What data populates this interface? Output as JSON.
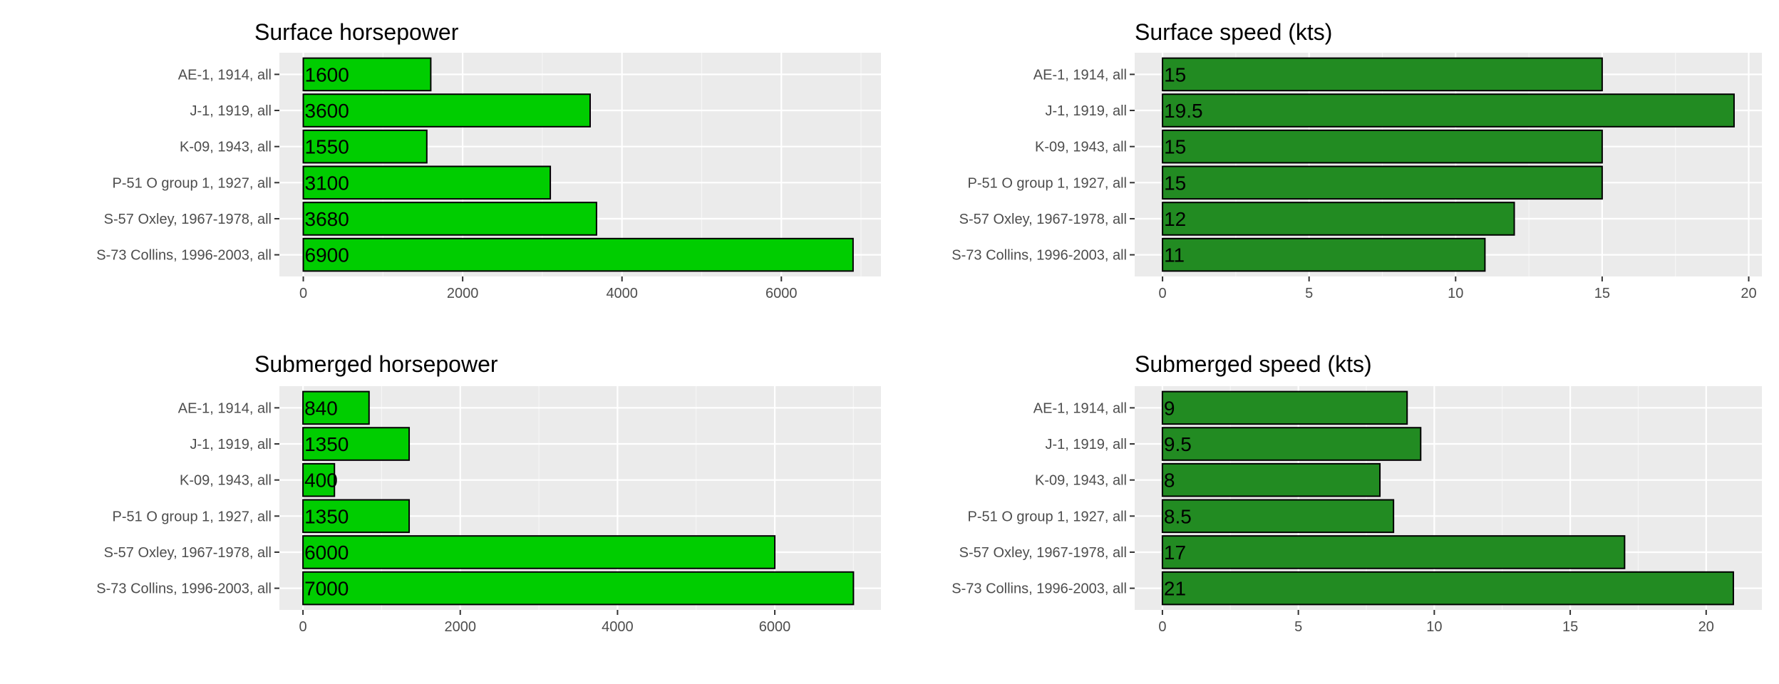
{
  "chart_data": [
    {
      "type": "bar",
      "orientation": "horizontal",
      "title": "Surface horsepower",
      "xlabel": "",
      "ylabel": "",
      "categories": [
        "AE-1, 1914, all",
        "J-1, 1919, all",
        "K-09, 1943, all",
        "P-51 O group 1, 1927, all",
        "S-57 Oxley, 1967-1978, all",
        "S-73 Collins, 1996-2003, all"
      ],
      "values": [
        1600,
        3600,
        1550,
        3100,
        3680,
        6900
      ],
      "value_labels": [
        "1600",
        "3600",
        "1550",
        "3100",
        "3680",
        "6900"
      ],
      "xlim": [
        -300,
        7250
      ],
      "xticks": [
        0,
        2000,
        4000,
        6000
      ],
      "xtick_labels": [
        "0",
        "2000",
        "4000",
        "6000"
      ],
      "grid": true,
      "bar_color": "#00cd00"
    },
    {
      "type": "bar",
      "orientation": "horizontal",
      "title": "Surface speed (kts)",
      "xlabel": "",
      "ylabel": "",
      "categories": [
        "AE-1, 1914, all",
        "J-1, 1919, all",
        "K-09, 1943, all",
        "P-51 O group 1, 1927, all",
        "S-57 Oxley, 1967-1978, all",
        "S-73 Collins, 1996-2003, all"
      ],
      "values": [
        15,
        19.5,
        15,
        15,
        12,
        11
      ],
      "value_labels": [
        "15",
        "19.5",
        "15",
        "15",
        "12",
        "11"
      ],
      "xlim": [
        -0.95,
        20.45
      ],
      "xticks": [
        0,
        5,
        10,
        15,
        20
      ],
      "xtick_labels": [
        "0",
        "5",
        "10",
        "15",
        "20"
      ],
      "grid": true,
      "bar_color": "#228b22"
    },
    {
      "type": "bar",
      "orientation": "horizontal",
      "title": "Submerged horsepower",
      "xlabel": "",
      "ylabel": "",
      "categories": [
        "AE-1, 1914, all",
        "J-1, 1919, all",
        "K-09, 1943, all",
        "P-51 O group 1, 1927, all",
        "S-57 Oxley, 1967-1978, all",
        "S-73 Collins, 1996-2003, all"
      ],
      "values": [
        840,
        1350,
        400,
        1350,
        6000,
        7000
      ],
      "value_labels": [
        "840",
        "1350",
        "400",
        "1350",
        "6000",
        "7000"
      ],
      "xlim": [
        -300,
        7350
      ],
      "xticks": [
        0,
        2000,
        4000,
        6000
      ],
      "xtick_labels": [
        "0",
        "2000",
        "4000",
        "6000"
      ],
      "grid": true,
      "bar_color": "#00cd00"
    },
    {
      "type": "bar",
      "orientation": "horizontal",
      "title": "Submerged speed (kts)",
      "xlabel": "",
      "ylabel": "",
      "categories": [
        "AE-1, 1914, all",
        "J-1, 1919, all",
        "K-09, 1943, all",
        "P-51 O group 1, 1927, all",
        "S-57 Oxley, 1967-1978, all",
        "S-73 Collins, 1996-2003, all"
      ],
      "values": [
        9,
        9.5,
        8,
        8.5,
        17,
        21
      ],
      "value_labels": [
        "9",
        "9.5",
        "8",
        "8.5",
        "17",
        "21"
      ],
      "xlim": [
        -1.02,
        22.05
      ],
      "xticks": [
        0,
        5,
        10,
        15,
        20
      ],
      "xtick_labels": [
        "0",
        "5",
        "10",
        "15",
        "20"
      ],
      "grid": true,
      "bar_color": "#228b22"
    }
  ]
}
